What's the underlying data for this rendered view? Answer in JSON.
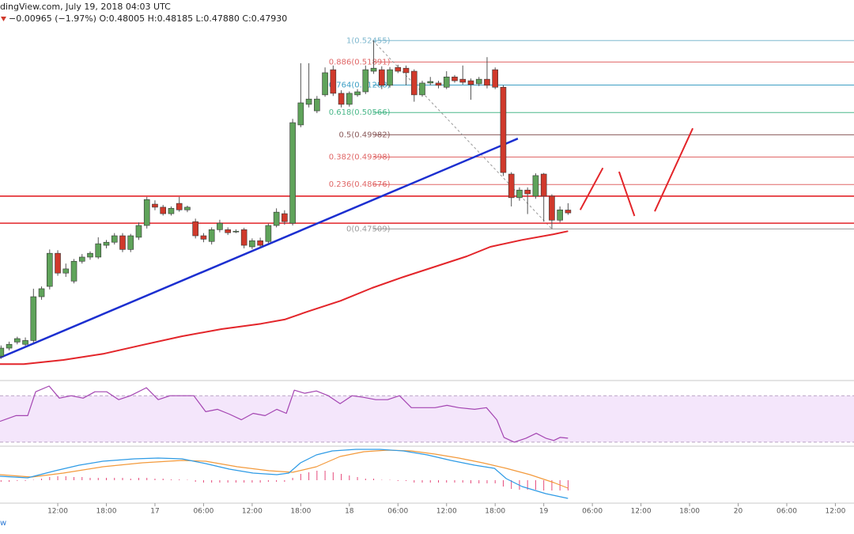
{
  "chart_data": {
    "type": "candlestick",
    "title": "dingView.com, July 19, 2018 04:03 UTC",
    "legend_text": "−0.00965 (−1.97%) O:0.48005 H:0.48185 L:0.47880 C:0.47930",
    "footer": "w",
    "up_color": "#5fa35a",
    "down_color": "#d0392b",
    "xlim": [
      -7.13,
      98.3
    ],
    "ylim": [
      0.4355,
      0.5352
    ],
    "xticks": [
      {
        "value": 0,
        "label": "12:00"
      },
      {
        "value": 6,
        "label": "18:00"
      },
      {
        "value": 12,
        "label": "17"
      },
      {
        "value": 18,
        "label": "06:00"
      },
      {
        "value": 24,
        "label": "12:00"
      },
      {
        "value": 30,
        "label": "18:00"
      },
      {
        "value": 36,
        "label": "18"
      },
      {
        "value": 42,
        "label": "06:00"
      },
      {
        "value": 48,
        "label": "12:00"
      },
      {
        "value": 54,
        "label": "18:00"
      },
      {
        "value": 60,
        "label": "19"
      },
      {
        "value": 66,
        "label": "06:00"
      },
      {
        "value": 72,
        "label": "12:00"
      },
      {
        "value": 78,
        "label": "18:00"
      },
      {
        "value": 84,
        "label": "20"
      },
      {
        "value": 90,
        "label": "06:00"
      },
      {
        "value": 96,
        "label": "12:00"
      }
    ],
    "x": [
      -7,
      -6,
      -5,
      -4,
      -3,
      -2,
      -1,
      0,
      1,
      2,
      3,
      4,
      5,
      6,
      7,
      8,
      9,
      10,
      11,
      12,
      13,
      14,
      15,
      16,
      17,
      18,
      19,
      20,
      21,
      22,
      23,
      24,
      25,
      26,
      27,
      28,
      29,
      30,
      31,
      32,
      33,
      34,
      35,
      36,
      37,
      38,
      39,
      40,
      41,
      42,
      43,
      44,
      45,
      46,
      47,
      48,
      49,
      50,
      51,
      52,
      53,
      54,
      55,
      56,
      57,
      58,
      59,
      60,
      61,
      62,
      63
    ],
    "open": [
      0.4417,
      0.4438,
      0.4454,
      0.4448,
      0.4458,
      0.4573,
      0.46,
      0.4687,
      0.4635,
      0.4614,
      0.4666,
      0.4677,
      0.4677,
      0.4708,
      0.4716,
      0.4733,
      0.4697,
      0.4729,
      0.476,
      0.4816,
      0.4808,
      0.4791,
      0.4818,
      0.4801,
      0.477,
      0.4733,
      0.4718,
      0.4749,
      0.4749,
      0.4745,
      0.4749,
      0.4704,
      0.472,
      0.4718,
      0.476,
      0.4791,
      0.4766,
      0.5024,
      0.5078,
      0.5061,
      0.5103,
      0.5169,
      0.5107,
      0.5078,
      0.5103,
      0.5111,
      0.5165,
      0.5169,
      0.5128,
      0.5175,
      0.5173,
      0.5165,
      0.5103,
      0.5134,
      0.5134,
      0.5123,
      0.515,
      0.5144,
      0.514,
      0.5132,
      0.5144,
      0.5169,
      0.5123,
      0.4895,
      0.4833,
      0.4853,
      0.4837,
      0.4895,
      0.4837,
      0.4774,
      0.48005
    ],
    "high": [
      0.4445,
      0.4455,
      0.4468,
      0.4466,
      0.4594,
      0.46,
      0.4697,
      0.4695,
      0.466,
      0.4672,
      0.4685,
      0.4692,
      0.4729,
      0.4722,
      0.474,
      0.474,
      0.4738,
      0.4768,
      0.4835,
      0.4826,
      0.4814,
      0.481,
      0.4835,
      0.4812,
      0.4778,
      0.474,
      0.4755,
      0.4775,
      0.4755,
      0.475,
      0.4754,
      0.4726,
      0.4728,
      0.4765,
      0.4805,
      0.48,
      0.504,
      0.5186,
      0.5186,
      0.51,
      0.5175,
      0.518,
      0.5115,
      0.5112,
      0.5118,
      0.518,
      0.52455,
      0.5178,
      0.5176,
      0.5182,
      0.518,
      0.517,
      0.514,
      0.515,
      0.514,
      0.5165,
      0.5155,
      0.518,
      0.5146,
      0.515,
      0.5202,
      0.5175,
      0.5128,
      0.49,
      0.486,
      0.486,
      0.4897,
      0.4898,
      0.4842,
      0.481,
      0.48185
    ],
    "low": [
      0.441,
      0.4432,
      0.4448,
      0.4444,
      0.4452,
      0.4565,
      0.4592,
      0.4628,
      0.4625,
      0.4608,
      0.466,
      0.467,
      0.4672,
      0.47,
      0.471,
      0.469,
      0.469,
      0.4722,
      0.4752,
      0.48,
      0.4786,
      0.4786,
      0.4796,
      0.4795,
      0.4726,
      0.4716,
      0.471,
      0.4742,
      0.4735,
      0.474,
      0.47,
      0.4698,
      0.4702,
      0.4712,
      0.4755,
      0.4762,
      0.476,
      0.5018,
      0.507,
      0.5055,
      0.5098,
      0.51,
      0.507,
      0.5072,
      0.5098,
      0.5105,
      0.5158,
      0.5118,
      0.5122,
      0.516,
      0.5128,
      0.5085,
      0.5098,
      0.5128,
      0.512,
      0.5118,
      0.5135,
      0.513,
      0.509,
      0.5126,
      0.512,
      0.5118,
      0.489,
      0.481,
      0.4825,
      0.479,
      0.483,
      0.477,
      0.47509,
      0.4768,
      0.4788
    ],
    "close": [
      0.4438,
      0.4448,
      0.4463,
      0.4458,
      0.4573,
      0.4594,
      0.4687,
      0.4635,
      0.4646,
      0.4666,
      0.4677,
      0.4687,
      0.4712,
      0.4716,
      0.4733,
      0.4697,
      0.4733,
      0.476,
      0.4828,
      0.4808,
      0.4791,
      0.4805,
      0.4801,
      0.4808,
      0.4733,
      0.4724,
      0.4749,
      0.4766,
      0.4741,
      0.4745,
      0.4708,
      0.472,
      0.4708,
      0.476,
      0.4795,
      0.477,
      0.503,
      0.5082,
      0.5092,
      0.5092,
      0.5161,
      0.5107,
      0.5078,
      0.5107,
      0.5111,
      0.5169,
      0.5173,
      0.5128,
      0.5169,
      0.5165,
      0.5161,
      0.5103,
      0.5134,
      0.5138,
      0.5128,
      0.515,
      0.514,
      0.5136,
      0.513,
      0.5144,
      0.5128,
      0.5123,
      0.4899,
      0.4833,
      0.4853,
      0.4843,
      0.4891,
      0.4837,
      0.4774,
      0.4801,
      0.4793
    ],
    "ema": {
      "color": "#e3252a",
      "x": [
        -7.13,
        -4.2,
        0.7,
        5.6,
        10.4,
        15.3,
        20.2,
        25.1,
        28.0,
        31.0,
        34.9,
        38.8,
        42.7,
        46.6,
        50.5,
        53.4,
        57.3,
        61.2,
        63
      ],
      "values": [
        0.4396,
        0.4396,
        0.4407,
        0.4423,
        0.4446,
        0.4469,
        0.4488,
        0.4502,
        0.4513,
        0.4535,
        0.4562,
        0.4596,
        0.4625,
        0.4652,
        0.4679,
        0.4704,
        0.4722,
        0.4737,
        0.4745
      ]
    },
    "trendline": {
      "color": "#1c2fd0",
      "x": [
        -7.13,
        56.8
      ],
      "values": [
        0.4413,
        0.4988
      ]
    },
    "projection": {
      "color": "#e3252a",
      "x": [
        64.5,
        67.3,
        null,
        69.3,
        71.2,
        null,
        73.7,
        78.4
      ],
      "values": [
        0.4801,
        0.4911,
        null,
        0.4901,
        0.4785,
        null,
        0.4797,
        0.5015
      ]
    },
    "hlines": [
      {
        "value": 0.4837,
        "color": "#e3252a"
      },
      {
        "value": 0.4766,
        "color": "#e3252a"
      }
    ],
    "fib": {
      "x": [
        38.9,
        61.0
      ],
      "line_color": "#999999",
      "levels": [
        {
          "value": 0.52455,
          "label": "1(0.52455)",
          "color": "#7fb8cf"
        },
        {
          "value": 0.51891,
          "label": "0.886(0.51891)",
          "color": "#e06666"
        },
        {
          "value": 0.51288,
          "label": "0.764(0.51288)",
          "color": "#3d9fc4"
        },
        {
          "value": 0.50566,
          "label": "0.618(0.50566)",
          "color": "#4bb88a"
        },
        {
          "value": 0.49982,
          "label": "0.5(0.49982)",
          "color": "#8a5a5a"
        },
        {
          "value": 0.49398,
          "label": "0.382(0.49398)",
          "color": "#e06666"
        },
        {
          "value": 0.48676,
          "label": "0.236(0.48676)",
          "color": "#e06666"
        },
        {
          "value": 0.47509,
          "label": "0(0.47509)",
          "color": "#9a9a9a"
        }
      ]
    },
    "rsi": {
      "color": "#a445b2",
      "band_color": "#f4e6fb",
      "ylim": [
        27.2,
        82.4
      ],
      "bands": [
        30,
        70
      ],
      "x": [
        -7.13,
        -5.18,
        -3.71,
        -2.73,
        -1.07,
        0.2,
        1.66,
        3.13,
        4.59,
        6.05,
        7.52,
        8.98,
        10.94,
        12.4,
        13.87,
        15.33,
        16.8,
        18.26,
        19.73,
        21.19,
        22.66,
        24.12,
        25.59,
        27.05,
        28.22,
        29.2,
        30.47,
        31.93,
        33.4,
        34.86,
        36.33,
        37.79,
        39.26,
        40.72,
        42.19,
        43.65,
        45.12,
        46.58,
        48.05,
        49.51,
        51.46,
        52.93,
        54.2,
        55.08,
        56.35,
        57.81,
        59.08,
        60.25,
        61.23,
        62.01,
        62.99
      ],
      "values": [
        47.9,
        52.8,
        52.8,
        73.4,
        78.3,
        67.9,
        70,
        67.9,
        73.4,
        73.4,
        66.6,
        70,
        76.9,
        66.6,
        70,
        70,
        70,
        56.2,
        58.3,
        54.1,
        49.3,
        54.8,
        52.8,
        58.3,
        54.8,
        74.8,
        72.1,
        74.1,
        70,
        63.1,
        70,
        68.6,
        66.6,
        66.6,
        70,
        59.7,
        59.7,
        59.7,
        61.7,
        59.7,
        58.3,
        59.7,
        49.3,
        34.1,
        30,
        33.4,
        37.6,
        33.4,
        31.4,
        34.1,
        33.4
      ]
    },
    "macd": {
      "ylim": [
        -0.0028,
        0.0042
      ],
      "macd": {
        "color": "#2e9be6",
        "x": [
          -7.13,
          -3.71,
          -0.29,
          2.64,
          5.57,
          9.47,
          12.4,
          15.33,
          18.26,
          21.19,
          24.12,
          27.05,
          28.52,
          29.98,
          31.93,
          33.89,
          36.82,
          39.75,
          42.68,
          45.61,
          48.54,
          51.46,
          53.91,
          55.37,
          57.32,
          60.25,
          62.99
        ],
        "values": [
          0.0005,
          0.0003,
          0.0012,
          0.0019,
          0.0024,
          0.0027,
          0.0028,
          0.0027,
          0.0021,
          0.0014,
          0.0009,
          0.0007,
          0.0009,
          0.0022,
          0.0032,
          0.0037,
          0.0039,
          0.0039,
          0.0037,
          0.0032,
          0.0025,
          0.0019,
          0.0015,
          0.0002,
          -0.0008,
          -0.0017,
          -0.0023
        ]
      },
      "signal": {
        "color": "#f39a3c",
        "x": [
          -7.13,
          -3.22,
          0.68,
          5.57,
          10.45,
          15.33,
          18.26,
          22.17,
          26.07,
          29.0,
          31.93,
          34.86,
          37.79,
          40.72,
          43.65,
          46.58,
          49.51,
          52.44,
          55.37,
          58.3,
          61.23,
          62.99
        ],
        "values": [
          0.0007,
          0.0004,
          0.0009,
          0.0017,
          0.0022,
          0.0025,
          0.0024,
          0.0017,
          0.0012,
          0.001,
          0.0017,
          0.003,
          0.0036,
          0.0038,
          0.0037,
          0.0033,
          0.0028,
          0.0022,
          0.0015,
          0.0007,
          -0.0003,
          -0.001
        ]
      },
      "histogram": {
        "color": "#e64a7b",
        "x": [
          -7,
          -6,
          -5,
          -4,
          -3,
          -2,
          -1,
          0,
          1,
          2,
          3,
          4,
          5,
          6,
          7,
          8,
          9,
          10,
          11,
          12,
          13,
          14,
          15,
          16,
          17,
          18,
          19,
          20,
          21,
          22,
          23,
          24,
          25,
          26,
          27,
          28,
          29,
          30,
          31,
          32,
          33,
          34,
          35,
          36,
          37,
          38,
          39,
          40,
          41,
          42,
          43,
          44,
          45,
          46,
          47,
          48,
          49,
          50,
          51,
          52,
          53,
          54,
          55,
          56,
          57,
          58,
          59,
          60,
          61,
          62,
          63
        ],
        "values": [
          -0.0002,
          -0.0002,
          -0.0001,
          -0.0001,
          0.0,
          0.0002,
          0.0004,
          0.0005,
          0.0005,
          0.0004,
          0.0004,
          0.0003,
          0.0003,
          0.0003,
          0.0003,
          0.0003,
          0.0002,
          0.0003,
          0.0003,
          0.0002,
          0.0002,
          0.0001,
          0.0001,
          0.0,
          -0.0002,
          -0.0003,
          -0.0003,
          -0.0003,
          -0.0003,
          -0.0003,
          -0.0003,
          -0.0003,
          -0.0003,
          -0.0002,
          -0.0002,
          -0.0002,
          0.0003,
          0.0008,
          0.001,
          0.0012,
          0.0012,
          0.001,
          0.0008,
          0.0006,
          0.0004,
          0.0002,
          0.0002,
          0.0,
          0.0,
          -0.0001,
          -0.0001,
          -0.0003,
          -0.0003,
          -0.0003,
          -0.0003,
          -0.0003,
          -0.0003,
          -0.0003,
          -0.0004,
          -0.0004,
          -0.0004,
          -0.0004,
          -0.0008,
          -0.0011,
          -0.0012,
          -0.0012,
          -0.0012,
          -0.0013,
          -0.0013,
          -0.0013,
          -0.0013
        ]
      }
    }
  }
}
